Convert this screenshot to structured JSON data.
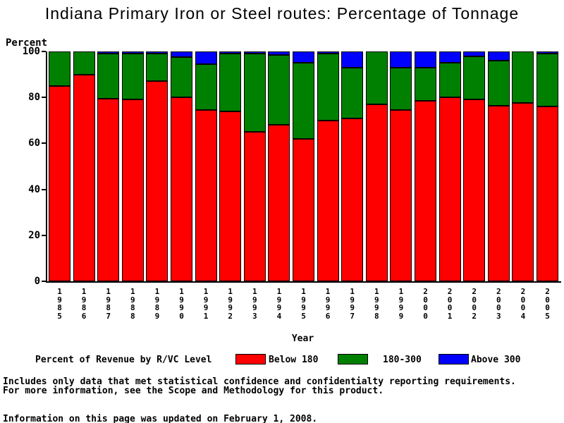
{
  "chart_data": {
    "type": "bar",
    "subtype": "stacked-percentage",
    "title": "Indiana Primary Iron or Steel routes: Percentage of Tonnage",
    "xlabel": "Year",
    "ylabel": "Percent",
    "ylim": [
      0,
      100
    ],
    "yticks": [
      0,
      20,
      40,
      60,
      80,
      100
    ],
    "grid": false,
    "legend_position": "bottom",
    "legend_title": "Percent of Revenue by R/VC Level",
    "categories": [
      "1985",
      "1986",
      "1987",
      "1988",
      "1989",
      "1990",
      "1991",
      "1992",
      "1993",
      "1994",
      "1995",
      "1996",
      "1997",
      "1998",
      "1999",
      "2000",
      "2001",
      "2002",
      "2003",
      "2004",
      "2005"
    ],
    "series": [
      {
        "name": "Below 180",
        "color": "#ff0000",
        "values": [
          85,
          90,
          79.5,
          79,
          87,
          80,
          74.5,
          74,
          65,
          68,
          62,
          70,
          71,
          77,
          74.5,
          78.5,
          80,
          79,
          76.5,
          77.5,
          76
        ]
      },
      {
        "name": "180-300",
        "color": "#008000",
        "values": [
          15,
          10,
          19.5,
          20,
          12,
          17.5,
          20,
          25,
          34,
          30.5,
          33,
          29,
          22,
          23,
          18.5,
          14.5,
          15,
          19,
          19.5,
          22.5,
          23
        ]
      },
      {
        "name": "Above 300",
        "color": "#0000ff",
        "values": [
          0,
          0,
          1,
          1,
          1,
          2.5,
          5.5,
          1,
          1,
          1.5,
          5,
          1,
          7,
          0,
          7,
          7,
          5,
          2,
          4,
          0,
          1
        ]
      }
    ]
  },
  "footer": {
    "note_line1": "Includes only data that met statistical confidence and confidentialty reporting requirements.",
    "note_line2": "For more information, see the Scope and Methodology for this product.",
    "updated": "Information on this page was updated on February 1, 2008."
  }
}
